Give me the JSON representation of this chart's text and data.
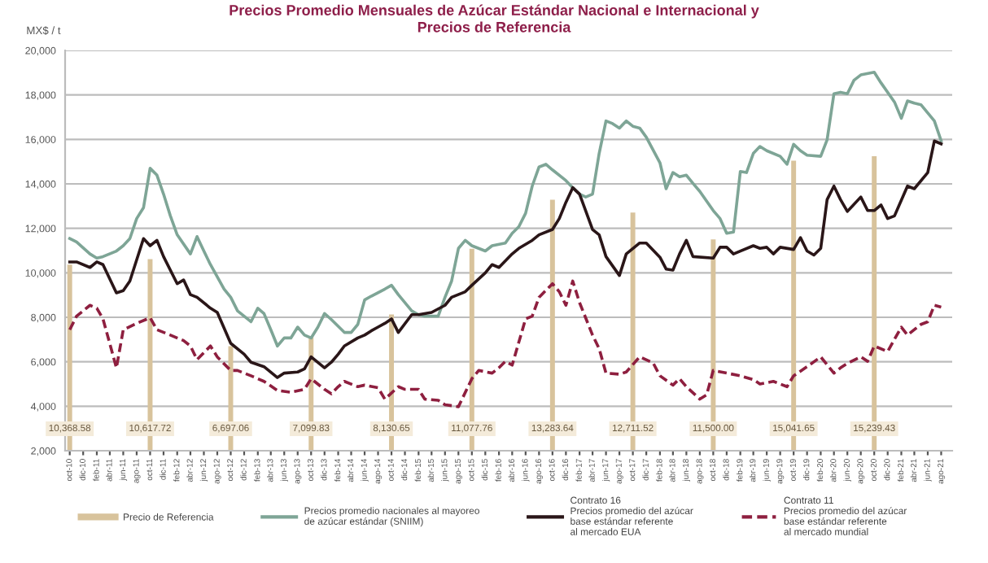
{
  "chart_data": {
    "type": "line",
    "title": "Precios Promedio Mensuales de Azúcar Estándar Nacional e Internacional y\nPrecios de Referencia",
    "ylabel": "MX$ / t",
    "ylim": [
      2000,
      20000
    ],
    "yticks": [
      {
        "value": 2000,
        "label": "2,000"
      },
      {
        "value": 4000,
        "label": "4,000"
      },
      {
        "value": 6000,
        "label": "6,000"
      },
      {
        "value": 8000,
        "label": "8,000"
      },
      {
        "value": 10000,
        "label": "10,000"
      },
      {
        "value": 12000,
        "label": "12,000"
      },
      {
        "value": 14000,
        "label": "14,000"
      },
      {
        "value": 16000,
        "label": "16,000"
      },
      {
        "value": 18000,
        "label": "18,000"
      },
      {
        "value": 20000,
        "label": "20,000"
      }
    ],
    "xlim": [
      "2010-09-10",
      "2021-09-20"
    ],
    "xticks": [
      {
        "value": "2010-10",
        "label": "oct-10"
      },
      {
        "value": "2010-12",
        "label": "dic-10"
      },
      {
        "value": "2011-02",
        "label": "feb-11"
      },
      {
        "value": "2011-04",
        "label": "abr-11"
      },
      {
        "value": "2011-06",
        "label": "jun-11"
      },
      {
        "value": "2011-08",
        "label": "ago-11"
      },
      {
        "value": "2011-10",
        "label": "oct-11"
      },
      {
        "value": "2011-12",
        "label": "dic-11"
      },
      {
        "value": "2012-02",
        "label": "feb-12"
      },
      {
        "value": "2012-04",
        "label": "abr-12"
      },
      {
        "value": "2012-06",
        "label": "jun-12"
      },
      {
        "value": "2012-08",
        "label": "ago-12"
      },
      {
        "value": "2012-10",
        "label": "oct-12"
      },
      {
        "value": "2012-12",
        "label": "dic-12"
      },
      {
        "value": "2013-02",
        "label": "feb-13"
      },
      {
        "value": "2013-04",
        "label": "abr-13"
      },
      {
        "value": "2013-06",
        "label": "jun-13"
      },
      {
        "value": "2013-08",
        "label": "ago-13"
      },
      {
        "value": "2013-10",
        "label": "oct-13"
      },
      {
        "value": "2013-12",
        "label": "dic-13"
      },
      {
        "value": "2014-02",
        "label": "feb-14"
      },
      {
        "value": "2014-04",
        "label": "abr-14"
      },
      {
        "value": "2014-06",
        "label": "jun-14"
      },
      {
        "value": "2014-08",
        "label": "ago-14"
      },
      {
        "value": "2014-10",
        "label": "oct-14"
      },
      {
        "value": "2014-12",
        "label": "dic-14"
      },
      {
        "value": "2015-02",
        "label": "feb-15"
      },
      {
        "value": "2015-04",
        "label": "abr-15"
      },
      {
        "value": "2015-06",
        "label": "jun-15"
      },
      {
        "value": "2015-08",
        "label": "ago-15"
      },
      {
        "value": "2015-10",
        "label": "oct-15"
      },
      {
        "value": "2015-12",
        "label": "dic-15"
      },
      {
        "value": "2016-02",
        "label": "feb-16"
      },
      {
        "value": "2016-04",
        "label": "abr-16"
      },
      {
        "value": "2016-06",
        "label": "jun-16"
      },
      {
        "value": "2016-08",
        "label": "ago-16"
      },
      {
        "value": "2016-10",
        "label": "oct-16"
      },
      {
        "value": "2016-12",
        "label": "dic-16"
      },
      {
        "value": "2017-02",
        "label": "feb-17"
      },
      {
        "value": "2017-04",
        "label": "abr-17"
      },
      {
        "value": "2017-06",
        "label": "jun-17"
      },
      {
        "value": "2017-08",
        "label": "ago-17"
      },
      {
        "value": "2017-10",
        "label": "oct-17"
      },
      {
        "value": "2017-12",
        "label": "dic-17"
      },
      {
        "value": "2018-02",
        "label": "feb-18"
      },
      {
        "value": "2018-04",
        "label": "abr-18"
      },
      {
        "value": "2018-06",
        "label": "jun-18"
      },
      {
        "value": "2018-08",
        "label": "ago-18"
      },
      {
        "value": "2018-10",
        "label": "oct-18"
      },
      {
        "value": "2018-12",
        "label": "dic-18"
      },
      {
        "value": "2019-02",
        "label": "feb-19"
      },
      {
        "value": "2019-04",
        "label": "abr-19"
      },
      {
        "value": "2019-06",
        "label": "jun-19"
      },
      {
        "value": "2019-08",
        "label": "ago-19"
      },
      {
        "value": "2019-10",
        "label": "oct-19"
      },
      {
        "value": "2019-12",
        "label": "dic-19"
      },
      {
        "value": "2020-02",
        "label": "feb-20"
      },
      {
        "value": "2020-04",
        "label": "abr-20"
      },
      {
        "value": "2020-06",
        "label": "jun-20"
      },
      {
        "value": "2020-08",
        "label": "ago-20"
      },
      {
        "value": "2020-10",
        "label": "oct-20"
      },
      {
        "value": "2020-12",
        "label": "dic-20"
      },
      {
        "value": "2021-02",
        "label": "feb-21"
      },
      {
        "value": "2021-04",
        "label": "abr-21"
      },
      {
        "value": "2021-06",
        "label": "jun-21"
      },
      {
        "value": "2021-08",
        "label": "ago-21"
      }
    ],
    "grid": "y",
    "legend": "bottom",
    "series": [
      {
        "name": "Precio de Referencia",
        "type": "bar",
        "color": "#d8c39c",
        "x": [
          "2010-10",
          "2011-10",
          "2012-10",
          "2013-10",
          "2014-10",
          "2015-10",
          "2016-10",
          "2017-10",
          "2018-10",
          "2019-10",
          "2020-10"
        ],
        "values": [
          10368.58,
          10617.72,
          6697.06,
          7099.83,
          8130.65,
          11077.76,
          13283.64,
          12711.52,
          11500.0,
          15041.65,
          15239.43
        ],
        "value_labels": [
          "10,368.58",
          "10,617.72",
          "6,697.06",
          "7,099.83",
          "8,130.65",
          "11,077.76",
          "13,283.64",
          "12,711.52",
          "11,500.00",
          "15,041.65",
          "15,239.43"
        ]
      },
      {
        "name": "Precios promedio nacionales al mayoreo\nde azúcar estándar (SNIIM)",
        "color": "#7ea596",
        "line_style": "solid",
        "x": [
          "2010-10",
          "2010-11",
          "2011-01",
          "2011-02",
          "2011-03",
          "2011-05",
          "2011-06",
          "2011-07",
          "2011-08",
          "2011-09",
          "2011-10",
          "2011-11",
          "2011-12",
          "2012-01",
          "2012-02",
          "2012-04",
          "2012-05",
          "2012-06",
          "2012-07",
          "2012-09",
          "2012-10",
          "2012-11",
          "2013-01",
          "2013-02",
          "2013-03",
          "2013-04",
          "2013-05",
          "2013-06",
          "2013-07",
          "2013-08",
          "2013-09",
          "2013-10",
          "2013-11",
          "2013-12",
          "2014-01",
          "2014-03",
          "2014-04",
          "2014-05",
          "2014-06",
          "2014-07",
          "2014-09",
          "2014-10",
          "2014-11",
          "2015-01",
          "2015-02",
          "2015-03",
          "2015-05",
          "2015-06",
          "2015-07",
          "2015-08",
          "2015-09",
          "2015-10",
          "2015-12",
          "2016-01",
          "2016-03",
          "2016-04",
          "2016-05",
          "2016-06",
          "2016-07",
          "2016-08",
          "2016-09",
          "2016-10",
          "2016-12",
          "2017-01",
          "2017-02",
          "2017-03",
          "2017-04",
          "2017-05",
          "2017-06",
          "2017-07",
          "2017-08",
          "2017-09",
          "2017-10",
          "2017-11",
          "2017-12",
          "2018-02",
          "2018-03",
          "2018-04",
          "2018-05",
          "2018-06",
          "2018-07",
          "2018-08",
          "2018-10",
          "2018-11",
          "2018-12",
          "2019-01",
          "2019-02",
          "2019-03",
          "2019-04",
          "2019-05",
          "2019-06",
          "2019-08",
          "2019-09",
          "2019-10",
          "2019-11",
          "2019-12",
          "2020-02",
          "2020-03",
          "2020-04",
          "2020-05",
          "2020-06",
          "2020-07",
          "2020-08",
          "2020-10",
          "2020-11",
          "2021-01",
          "2021-02",
          "2021-03",
          "2021-04",
          "2021-05",
          "2021-07",
          "2021-08"
        ],
        "values": [
          11540,
          11390,
          10850,
          10660,
          10730,
          10980,
          11220,
          11540,
          12440,
          12930,
          14700,
          14390,
          13540,
          12560,
          11710,
          10850,
          11630,
          10980,
          10370,
          9270,
          8900,
          8290,
          7800,
          8410,
          8170,
          7440,
          6710,
          7070,
          7070,
          7560,
          7200,
          7070,
          7560,
          8170,
          7900,
          7320,
          7320,
          7680,
          8780,
          8950,
          9270,
          9440,
          9020,
          8290,
          8120,
          8050,
          8050,
          8900,
          9630,
          11100,
          11460,
          11220,
          10980,
          11220,
          11340,
          11780,
          12070,
          12680,
          13900,
          14760,
          14880,
          14630,
          14150,
          13830,
          13540,
          13410,
          13540,
          15370,
          16830,
          16710,
          16510,
          16830,
          16590,
          16510,
          16100,
          14950,
          13780,
          14510,
          14320,
          14390,
          14020,
          13660,
          12800,
          12440,
          11780,
          11830,
          14560,
          14510,
          15370,
          15680,
          15490,
          15240,
          14880,
          15780,
          15490,
          15290,
          15240,
          15980,
          18050,
          18120,
          18050,
          18660,
          18900,
          19020,
          18540,
          17680,
          16950,
          17730,
          17630,
          17560,
          16830,
          15930
        ]
      },
      {
        "name": "Contrato 16\nPrecios promedio del azúcar\nbase estándar referente\nal mercado EUA",
        "color": "#2a1618",
        "line_style": "solid",
        "x": [
          "2010-10",
          "2010-11",
          "2011-01",
          "2011-02",
          "2011-03",
          "2011-05",
          "2011-06",
          "2011-07",
          "2011-09",
          "2011-10",
          "2011-11",
          "2011-12",
          "2012-02",
          "2012-03",
          "2012-04",
          "2012-05",
          "2012-07",
          "2012-08",
          "2012-10",
          "2012-12",
          "2013-01",
          "2013-03",
          "2013-05",
          "2013-06",
          "2013-08",
          "2013-09",
          "2013-10",
          "2013-12",
          "2014-01",
          "2014-02",
          "2014-03",
          "2014-05",
          "2014-06",
          "2014-07",
          "2014-08",
          "2014-09",
          "2014-10",
          "2014-11",
          "2015-01",
          "2015-02",
          "2015-04",
          "2015-06",
          "2015-07",
          "2015-09",
          "2015-10",
          "2015-12",
          "2016-01",
          "2016-02",
          "2016-04",
          "2016-05",
          "2016-07",
          "2016-08",
          "2016-10",
          "2016-11",
          "2016-12",
          "2017-01",
          "2017-02",
          "2017-04",
          "2017-05",
          "2017-06",
          "2017-08",
          "2017-09",
          "2017-11",
          "2017-12",
          "2018-02",
          "2018-03",
          "2018-04",
          "2018-05",
          "2018-06",
          "2018-07",
          "2018-10",
          "2018-11",
          "2018-12",
          "2019-01",
          "2019-02",
          "2019-04",
          "2019-05",
          "2019-06",
          "2019-07",
          "2019-08",
          "2019-10",
          "2019-11",
          "2019-12",
          "2020-01",
          "2020-02",
          "2020-03",
          "2020-04",
          "2020-05",
          "2020-06",
          "2020-08",
          "2020-09",
          "2020-10",
          "2020-11",
          "2020-12",
          "2021-01",
          "2021-03",
          "2021-04",
          "2021-06",
          "2021-07",
          "2021-08"
        ],
        "values": [
          10490,
          10490,
          10240,
          10490,
          10370,
          9100,
          9200,
          9630,
          11540,
          11220,
          11460,
          10730,
          9510,
          9680,
          9020,
          8900,
          8410,
          8220,
          6830,
          6340,
          5980,
          5780,
          5290,
          5490,
          5540,
          5680,
          6220,
          5730,
          5980,
          6340,
          6710,
          7070,
          7200,
          7390,
          7560,
          7730,
          7930,
          7320,
          8120,
          8120,
          8220,
          8540,
          8900,
          9150,
          9440,
          10000,
          10370,
          10240,
          10850,
          11100,
          11460,
          11710,
          11950,
          12440,
          13170,
          13830,
          13540,
          11950,
          11710,
          10730,
          9880,
          10850,
          11340,
          11340,
          10700,
          10170,
          10120,
          10850,
          11460,
          10730,
          10660,
          11150,
          11150,
          10850,
          10980,
          11220,
          11100,
          11150,
          10850,
          11150,
          11050,
          11580,
          10980,
          10800,
          11100,
          13290,
          13900,
          13290,
          12760,
          13410,
          12800,
          12800,
          13050,
          12440,
          12560,
          13900,
          13780,
          14510,
          15930,
          15800
        ]
      },
      {
        "name": "Contrato 11\nPrecios promedio del azúcar\nbase estándar referente\nal mercado mundial",
        "color": "#8e1f3f",
        "line_style": "dashed",
        "x": [
          "2010-10",
          "2010-11",
          "2011-01",
          "2011-02",
          "2011-03",
          "2011-05",
          "2011-06",
          "2011-08",
          "2011-10",
          "2011-11",
          "2012-01",
          "2012-03",
          "2012-04",
          "2012-05",
          "2012-07",
          "2012-08",
          "2012-10",
          "2012-11",
          "2013-01",
          "2013-03",
          "2013-05",
          "2013-07",
          "2013-09",
          "2013-10",
          "2013-12",
          "2014-01",
          "2014-02",
          "2014-03",
          "2014-05",
          "2014-06",
          "2014-08",
          "2014-09",
          "2014-11",
          "2014-12",
          "2015-02",
          "2015-03",
          "2015-05",
          "2015-06",
          "2015-08",
          "2015-10",
          "2015-11",
          "2016-01",
          "2016-02",
          "2016-03",
          "2016-04",
          "2016-06",
          "2016-07",
          "2016-08",
          "2016-10",
          "2016-11",
          "2016-12",
          "2017-01",
          "2017-02",
          "2017-04",
          "2017-05",
          "2017-06",
          "2017-08",
          "2017-09",
          "2017-11",
          "2018-01",
          "2018-02",
          "2018-04",
          "2018-05",
          "2018-06",
          "2018-08",
          "2018-09",
          "2018-10",
          "2018-12",
          "2019-02",
          "2019-04",
          "2019-05",
          "2019-07",
          "2019-09",
          "2019-10",
          "2019-12",
          "2020-02",
          "2020-04",
          "2020-05",
          "2020-06",
          "2020-08",
          "2020-09",
          "2020-10",
          "2020-12",
          "2021-02",
          "2021-03",
          "2021-05",
          "2021-06",
          "2021-07",
          "2021-08"
        ],
        "values": [
          7440,
          8050,
          8540,
          8410,
          7930,
          5730,
          7440,
          7730,
          7980,
          7440,
          7200,
          6950,
          6710,
          6100,
          6710,
          6220,
          5610,
          5610,
          5370,
          5120,
          4710,
          4630,
          4760,
          5240,
          4760,
          4560,
          4880,
          5120,
          4880,
          4950,
          4830,
          4320,
          4880,
          4760,
          4760,
          4320,
          4270,
          4070,
          3980,
          5240,
          5610,
          5490,
          5730,
          6020,
          5850,
          7930,
          8050,
          8900,
          9510,
          9150,
          8540,
          9630,
          8660,
          7200,
          6590,
          5490,
          5440,
          5540,
          6220,
          5950,
          5370,
          4950,
          5240,
          4880,
          4320,
          4510,
          5610,
          5490,
          5370,
          5200,
          5000,
          5120,
          4880,
          5370,
          5780,
          6220,
          5490,
          5730,
          5930,
          6220,
          6020,
          6710,
          6460,
          7560,
          7200,
          7680,
          7800,
          8540,
          8460
        ]
      }
    ]
  }
}
